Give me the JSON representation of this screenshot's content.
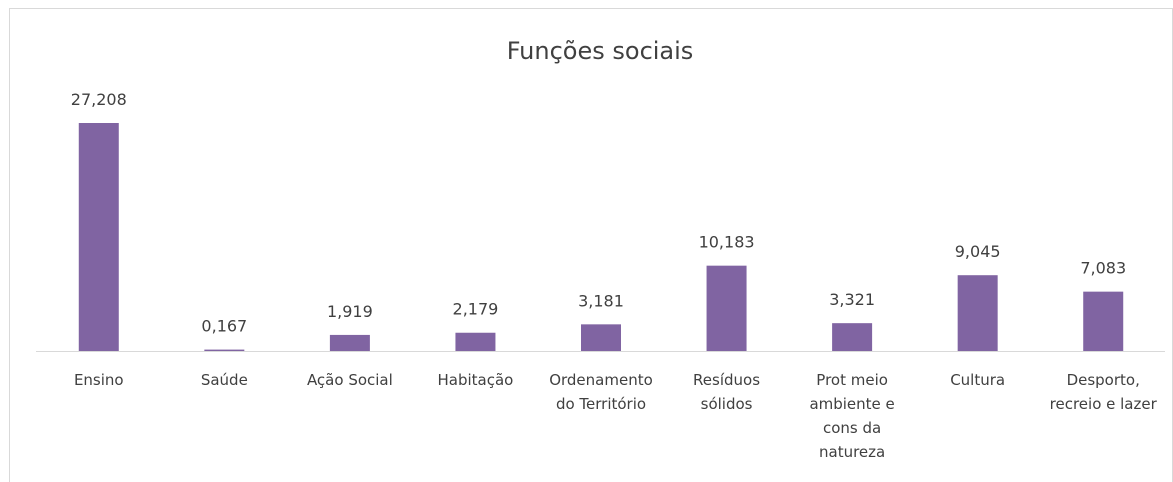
{
  "chart_data": {
    "type": "bar",
    "title": "Funções sociais",
    "categories": [
      "Ensino",
      "Saúde",
      "Ação Social",
      "Habitação",
      "Ordenamento do Território",
      "Resíduos sólidos",
      "Prot meio ambiente e cons da natureza",
      "Cultura",
      "Desporto, recreio e lazer"
    ],
    "values": [
      27.208,
      0.167,
      1.919,
      2.179,
      3.181,
      10.183,
      3.321,
      9.045,
      7.083
    ],
    "value_labels": [
      "27,208",
      "0,167",
      "1,919",
      "2,179",
      "3,181",
      "10,183",
      "3,321",
      "9,045",
      "7,083"
    ],
    "color": "#8064a2"
  }
}
